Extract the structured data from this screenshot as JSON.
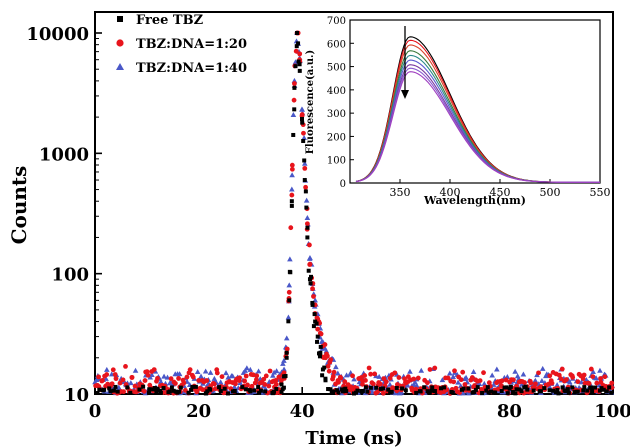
{
  "chart_data": [
    {
      "type": "scatter",
      "xlabel": "Time (ns)",
      "ylabel": "Counts",
      "xlim": [
        0,
        100
      ],
      "ylim": [
        10,
        10000
      ],
      "yscale": "log",
      "grid": false,
      "legend": "top-left",
      "x_ticks": [
        "0",
        "20",
        "40",
        "60",
        "80",
        "100"
      ],
      "y_ticks": [
        "10",
        "100",
        "1000",
        "10000"
      ],
      "series": [
        {
          "name": "Free TBZ",
          "color": "#000000",
          "marker": "square",
          "peak": [
            39,
            10000
          ],
          "x": [
            30,
            35,
            36,
            36.5,
            37,
            37.5,
            38,
            38.5,
            39,
            39.5,
            40,
            40.5,
            41,
            41.5,
            42,
            42.5,
            43,
            43.5,
            44,
            44.5,
            45,
            46,
            47,
            50
          ],
          "y": [
            10.5,
            11,
            12,
            14,
            20,
            60,
            400,
            3500,
            10000,
            5500,
            1800,
            600,
            200,
            90,
            55,
            40,
            30,
            22,
            16,
            13,
            11,
            10.5,
            10.3,
            10.1
          ]
        },
        {
          "name": "TBZ:DNA=1:20",
          "color": "#e8141c",
          "marker": "circle",
          "peak": [
            39,
            10000
          ],
          "x": [
            30,
            35,
            36,
            36.5,
            37,
            37.5,
            38,
            38.5,
            39,
            39.5,
            40,
            40.5,
            41,
            41.5,
            42,
            42.5,
            43,
            43.5,
            44,
            44.5,
            45,
            46,
            47,
            48,
            50,
            55
          ],
          "y": [
            11,
            12,
            13,
            15,
            22,
            70,
            450,
            3800,
            10000,
            6000,
            2100,
            750,
            260,
            120,
            75,
            55,
            42,
            32,
            25,
            20,
            17,
            14,
            12.5,
            11.5,
            11,
            10.8
          ]
        },
        {
          "name": "TBZ:DNA=1:40",
          "color": "#4a58c8",
          "marker": "triangle",
          "peak": [
            39,
            10000
          ],
          "x": [
            30,
            35,
            36,
            36.5,
            37,
            37.5,
            38,
            38.5,
            39,
            39.5,
            40,
            40.5,
            41,
            41.5,
            42,
            42.5,
            43,
            43.5,
            44,
            44.5,
            45,
            46,
            47,
            48,
            50,
            55
          ],
          "y": [
            11,
            12,
            13.5,
            16,
            24,
            80,
            500,
            4000,
            10000,
            6200,
            2300,
            820,
            290,
            135,
            82,
            60,
            46,
            35,
            27,
            21,
            18,
            15,
            13,
            12,
            11.2,
            10.9
          ]
        }
      ]
    },
    {
      "type": "line",
      "xlabel": "Wavelength(nm)",
      "ylabel": "Fluorescence(a.u.)",
      "xlim": [
        300,
        550
      ],
      "ylim": [
        0,
        700
      ],
      "x_ticks": [
        "350",
        "400",
        "450",
        "500",
        "550"
      ],
      "y_ticks": [
        "0",
        "100",
        "200",
        "300",
        "400",
        "500",
        "600",
        "700"
      ],
      "annotation": "downward arrow at peak indicating decreasing intensity",
      "peak_x": 360,
      "peak_values": [
        625,
        610,
        590,
        565,
        545,
        525,
        505,
        490,
        475
      ],
      "colors": [
        "#000000",
        "#e8141c",
        "#d9442c",
        "#3a7a3a",
        "#2a8a8a",
        "#5a5ad0",
        "#7a3aa0",
        "#8a5ad0",
        "#a040c0"
      ]
    }
  ]
}
